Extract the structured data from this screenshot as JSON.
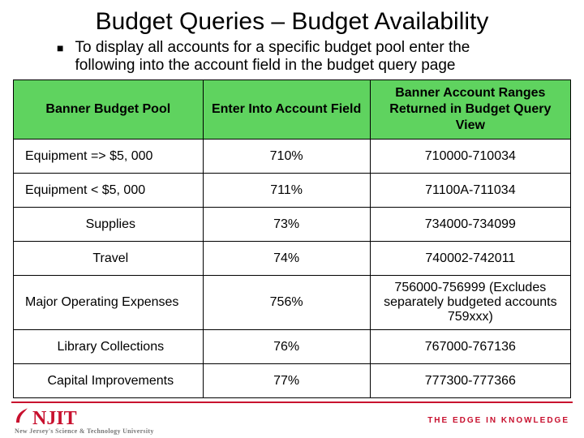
{
  "colors": {
    "header_bg": "#5fd35f",
    "border": "#000000",
    "accent": "#c8102e",
    "text": "#000000",
    "sub_text": "#777777",
    "background": "#ffffff"
  },
  "title": "Budget Queries – Budget Availability",
  "bullet": "To display all accounts for a specific budget pool enter the following into the account field in the budget query page",
  "table": {
    "columns": [
      "Banner Budget Pool",
      "Enter Into Account Field",
      "Banner Account Ranges Returned in Budget Query View"
    ],
    "col_widths_pct": [
      34,
      30,
      36
    ],
    "rows": [
      {
        "pool": "Equipment => $5, 000",
        "enter": "710%",
        "range": "710000-710034",
        "align": "left"
      },
      {
        "pool": "Equipment < $5, 000",
        "enter": "711%",
        "range": "71100A-711034",
        "align": "left"
      },
      {
        "pool": "Supplies",
        "enter": "73%",
        "range": "734000-734099",
        "align": "center"
      },
      {
        "pool": "Travel",
        "enter": "74%",
        "range": "740002-742011",
        "align": "center"
      },
      {
        "pool": "Major Operating Expenses",
        "enter": "756%",
        "range": "756000-756999 (Excludes separately budgeted accounts 759xxx)",
        "align": "left"
      },
      {
        "pool": "Library Collections",
        "enter": "76%",
        "range": "767000-767136",
        "align": "center"
      },
      {
        "pool": "Capital Improvements",
        "enter": "77%",
        "range": "777300-777366",
        "align": "center"
      }
    ]
  },
  "footer": {
    "logo_text": "NJIT",
    "logo_sub": "New Jersey's Science & Technology University",
    "tagline": "THE EDGE IN KNOWLEDGE"
  }
}
